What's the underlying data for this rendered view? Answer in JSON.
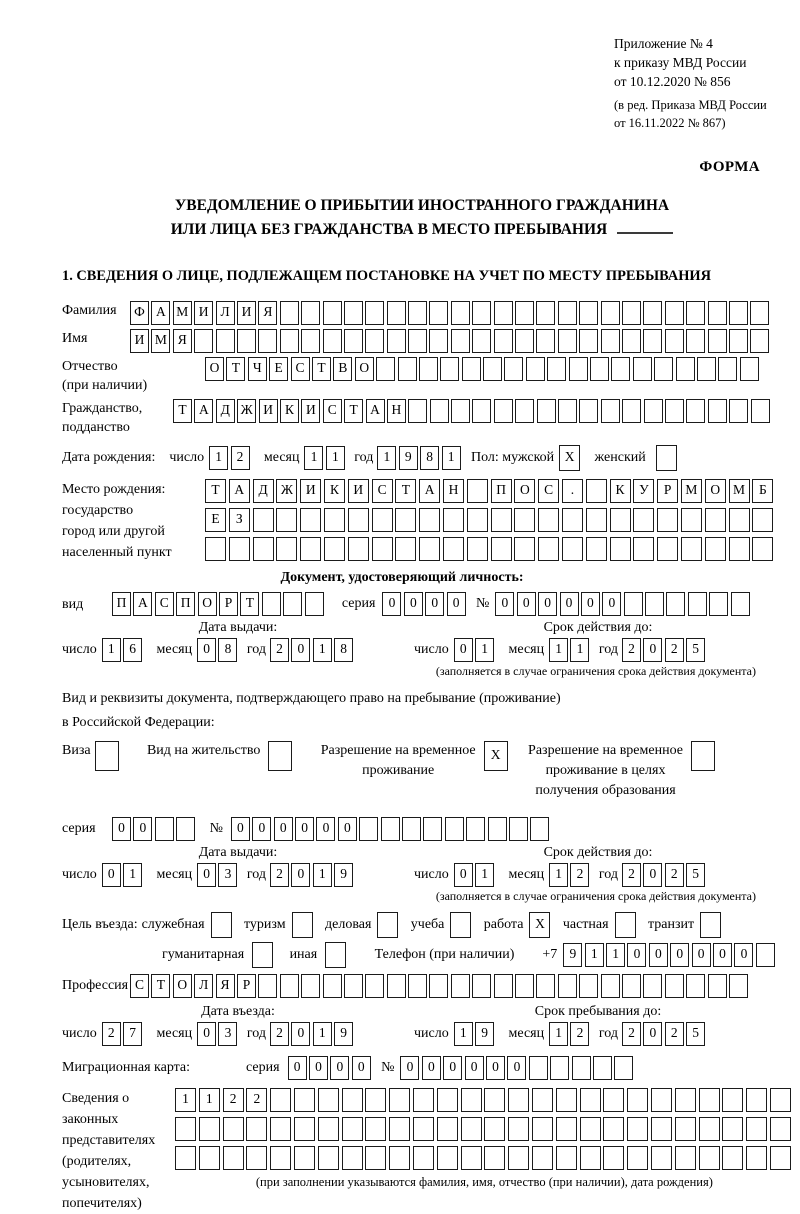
{
  "header": {
    "appendix_line1": "Приложение № 4",
    "appendix_line2": "к приказу МВД России",
    "appendix_line3": "от 10.12.2020 № 856",
    "amendment_line1": "(в ред. Приказа МВД России",
    "amendment_line2": "от 16.11.2022 № 867)",
    "form_label": "ФОРМА"
  },
  "title": {
    "line1": "УВЕДОМЛЕНИЕ О ПРИБЫТИИ ИНОСТРАННОГО ГРАЖДАНИНА",
    "line2": "ИЛИ ЛИЦА БЕЗ ГРАЖДАНСТВА В МЕСТО ПРЕБЫВАНИЯ"
  },
  "section1_heading": "1. СВЕДЕНИЯ О ЛИЦЕ, ПОДЛЕЖАЩЕМ ПОСТАНОВКЕ НА УЧЕТ ПО МЕСТУ ПРЕБЫВАНИЯ",
  "surname": {
    "label": "Фамилия",
    "cells": {
      "value": "ФАМИЛИЯ",
      "count": 30
    }
  },
  "firstname": {
    "label": "Имя",
    "cells": {
      "value": "ИМЯ",
      "count": 30
    }
  },
  "patronymic": {
    "label1": "Отчество",
    "label2": "(при наличии)",
    "cells": {
      "value": "ОТЧЕСТВО",
      "count": 26
    }
  },
  "citizenship": {
    "label1": "Гражданство,",
    "label2": "подданство",
    "cells": {
      "value": "ТАДЖИКИСТАН",
      "count": 28
    }
  },
  "birth": {
    "label": "Дата рождения:",
    "day_label": "число",
    "day": {
      "value": "12",
      "count": 2
    },
    "month_label": "месяц",
    "month": {
      "value": "11",
      "count": 2
    },
    "year_label": "год",
    "year": {
      "value": "1981",
      "count": 4
    },
    "sex_label": "Пол: мужской",
    "male": {
      "value": "X",
      "count": 1
    },
    "female_label": "женский",
    "female": {
      "value": "",
      "count": 1
    }
  },
  "birth_place": {
    "label1": "Место рождения:",
    "label2": "государство",
    "label3": "город или другой",
    "label4": "населенный пункт",
    "row1": {
      "value": "ТАДЖИКИСТАН ПОС. КУРМОМБ",
      "count": 24
    },
    "row2": {
      "value": "ЕЗ",
      "count": 24
    },
    "row3": {
      "value": "",
      "count": 24
    }
  },
  "identity_doc": {
    "heading": "Документ, удостоверяющий личность:",
    "type_label": "вид",
    "type": {
      "value": "ПАСПОРТ",
      "count": 10
    },
    "series_label": "серия",
    "series": {
      "value": "0000",
      "count": 4
    },
    "number_label": "№",
    "number": {
      "value": "000000",
      "count": 12
    },
    "issue_title": "Дата выдачи:",
    "issue_day_label": "число",
    "issue_day": {
      "value": "16",
      "count": 2
    },
    "issue_month_label": "месяц",
    "issue_month": {
      "value": "08",
      "count": 2
    },
    "issue_year_label": "год",
    "issue_year": {
      "value": "2018",
      "count": 4
    },
    "expiry_title": "Срок действия до:",
    "expiry_day_label": "число",
    "expiry_day": {
      "value": "01",
      "count": 2
    },
    "expiry_month_label": "месяц",
    "expiry_month": {
      "value": "11",
      "count": 2
    },
    "expiry_year_label": "год",
    "expiry_year": {
      "value": "2025",
      "count": 4
    },
    "note": "(заполняется в случае ограничения срока действия документа)"
  },
  "residence_doc": {
    "intro_line1": "Вид и реквизиты документа, подтверждающего право на пребывание (проживание)",
    "intro_line2": "в Российской Федерации:",
    "opt1_label": "Виза",
    "opt1": {
      "value": "",
      "count": 1
    },
    "opt2_label": "Вид на жительство",
    "opt2": {
      "value": "",
      "count": 1
    },
    "opt3_label1": "Разрешение на временное",
    "opt3_label2": "проживание",
    "opt3": {
      "value": "X",
      "count": 1
    },
    "opt4_label1": "Разрешение на временное",
    "opt4_label2": "проживание в целях",
    "opt4_label3": "получения образования",
    "opt4": {
      "value": "",
      "count": 1
    },
    "series_label": "серия",
    "series": {
      "value": "00",
      "count": 4
    },
    "number_label": "№",
    "number": {
      "value": "000000",
      "count": 15
    },
    "issue_title": "Дата выдачи:",
    "issue_day_label": "число",
    "issue_day": {
      "value": "01",
      "count": 2
    },
    "issue_month_label": "месяц",
    "issue_month": {
      "value": "03",
      "count": 2
    },
    "issue_year_label": "год",
    "issue_year": {
      "value": "2019",
      "count": 4
    },
    "expiry_title": "Срок действия до:",
    "expiry_day_label": "число",
    "expiry_day": {
      "value": "01",
      "count": 2
    },
    "expiry_month_label": "месяц",
    "expiry_month": {
      "value": "12",
      "count": 2
    },
    "expiry_year_label": "год",
    "expiry_year": {
      "value": "2025",
      "count": 4
    },
    "note": "(заполняется в случае ограничения срока действия документа)"
  },
  "purpose": {
    "label": "Цель въезда:",
    "opt_official": "служебная",
    "official": {
      "value": "",
      "count": 1
    },
    "opt_tourism": "туризм",
    "tourism": {
      "value": "",
      "count": 1
    },
    "opt_business": "деловая",
    "business": {
      "value": "",
      "count": 1
    },
    "opt_study": "учеба",
    "study": {
      "value": "",
      "count": 1
    },
    "opt_work": "работа",
    "work": {
      "value": "X",
      "count": 1
    },
    "opt_private": "частная",
    "private": {
      "value": "",
      "count": 1
    },
    "opt_transit": "транзит",
    "transit": {
      "value": "",
      "count": 1
    },
    "opt_humanitarian": "гуманитарная",
    "humanitarian": {
      "value": "",
      "count": 1
    },
    "opt_other": "иная",
    "other": {
      "value": "",
      "count": 1
    },
    "phone_label": "Телефон (при наличии)",
    "phone_prefix": "+7",
    "phone": {
      "value": "911000000",
      "count": 10
    }
  },
  "profession": {
    "label": "Профессия",
    "cells": {
      "value": "СТОЛЯР",
      "count": 29
    }
  },
  "entry": {
    "entry_title": "Дата въезда:",
    "entry_day_label": "число",
    "entry_day": {
      "value": "27",
      "count": 2
    },
    "entry_month_label": "месяц",
    "entry_month": {
      "value": "03",
      "count": 2
    },
    "entry_year_label": "год",
    "entry_year": {
      "value": "2019",
      "count": 4
    },
    "stay_title": "Срок пребывания до:",
    "stay_day_label": "число",
    "stay_day": {
      "value": "19",
      "count": 2
    },
    "stay_month_label": "месяц",
    "stay_month": {
      "value": "12",
      "count": 2
    },
    "stay_year_label": "год",
    "stay_year": {
      "value": "2025",
      "count": 4
    }
  },
  "migration_card": {
    "label": "Миграционная карта:",
    "series_label": "серия",
    "series": {
      "value": "0000",
      "count": 4
    },
    "number_label": "№",
    "number": {
      "value": "000000",
      "count": 11
    }
  },
  "representatives": {
    "label1": "Сведения о",
    "label2": "законных",
    "label3": "представителях",
    "label4": "(родителях,",
    "label5": "усыновителях,",
    "label6": "попечителях)",
    "row1": {
      "value": "1122",
      "count": 26
    },
    "row2": {
      "value": "",
      "count": 26
    },
    "row3": {
      "value": "",
      "count": 26
    },
    "note": "(при заполнении указываются фамилия, имя, отчество (при наличии), дата рождения)"
  }
}
